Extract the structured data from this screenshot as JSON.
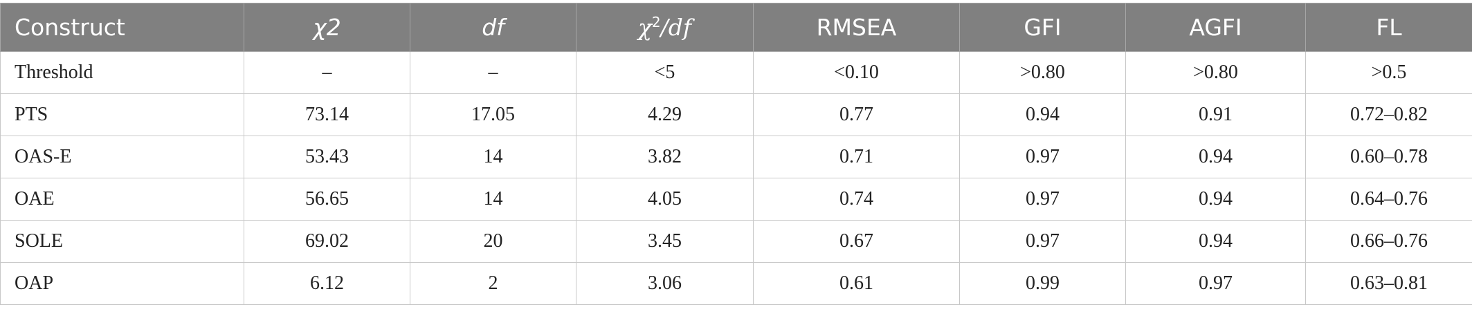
{
  "table": {
    "headers": {
      "construct": "Construct",
      "chi2": "χ2",
      "df": "df",
      "chi2df_chi": "χ",
      "chi2df_sup": "2",
      "chi2df_rest": "/df",
      "rmsea": "RMSEA",
      "gfi": "GFI",
      "agfi": "AGFI",
      "fl": "FL"
    },
    "rows": [
      {
        "construct": "Threshold",
        "chi2": "–",
        "df": "–",
        "chi2df": "<5",
        "rmsea": "<0.10",
        "gfi": ">0.80",
        "agfi": ">0.80",
        "fl": ">0.5"
      },
      {
        "construct": "PTS",
        "chi2": "73.14",
        "df": "17.05",
        "chi2df": "4.29",
        "rmsea": "0.77",
        "gfi": "0.94",
        "agfi": "0.91",
        "fl": "0.72–0.82"
      },
      {
        "construct": "OAS-E",
        "chi2": "53.43",
        "df": "14",
        "chi2df": "3.82",
        "rmsea": "0.71",
        "gfi": "0.97",
        "agfi": "0.94",
        "fl": "0.60–0.78"
      },
      {
        "construct": "OAE",
        "chi2": "56.65",
        "df": "14",
        "chi2df": "4.05",
        "rmsea": "0.74",
        "gfi": "0.97",
        "agfi": "0.94",
        "fl": "0.64–0.76"
      },
      {
        "construct": "SOLE",
        "chi2": "69.02",
        "df": "20",
        "chi2df": "3.45",
        "rmsea": "0.67",
        "gfi": "0.97",
        "agfi": "0.94",
        "fl": "0.66–0.76"
      },
      {
        "construct": "OAP",
        "chi2": "6.12",
        "df": "2",
        "chi2df": "3.06",
        "rmsea": "0.61",
        "gfi": "0.99",
        "agfi": "0.97",
        "fl": "0.63–0.81"
      }
    ]
  }
}
